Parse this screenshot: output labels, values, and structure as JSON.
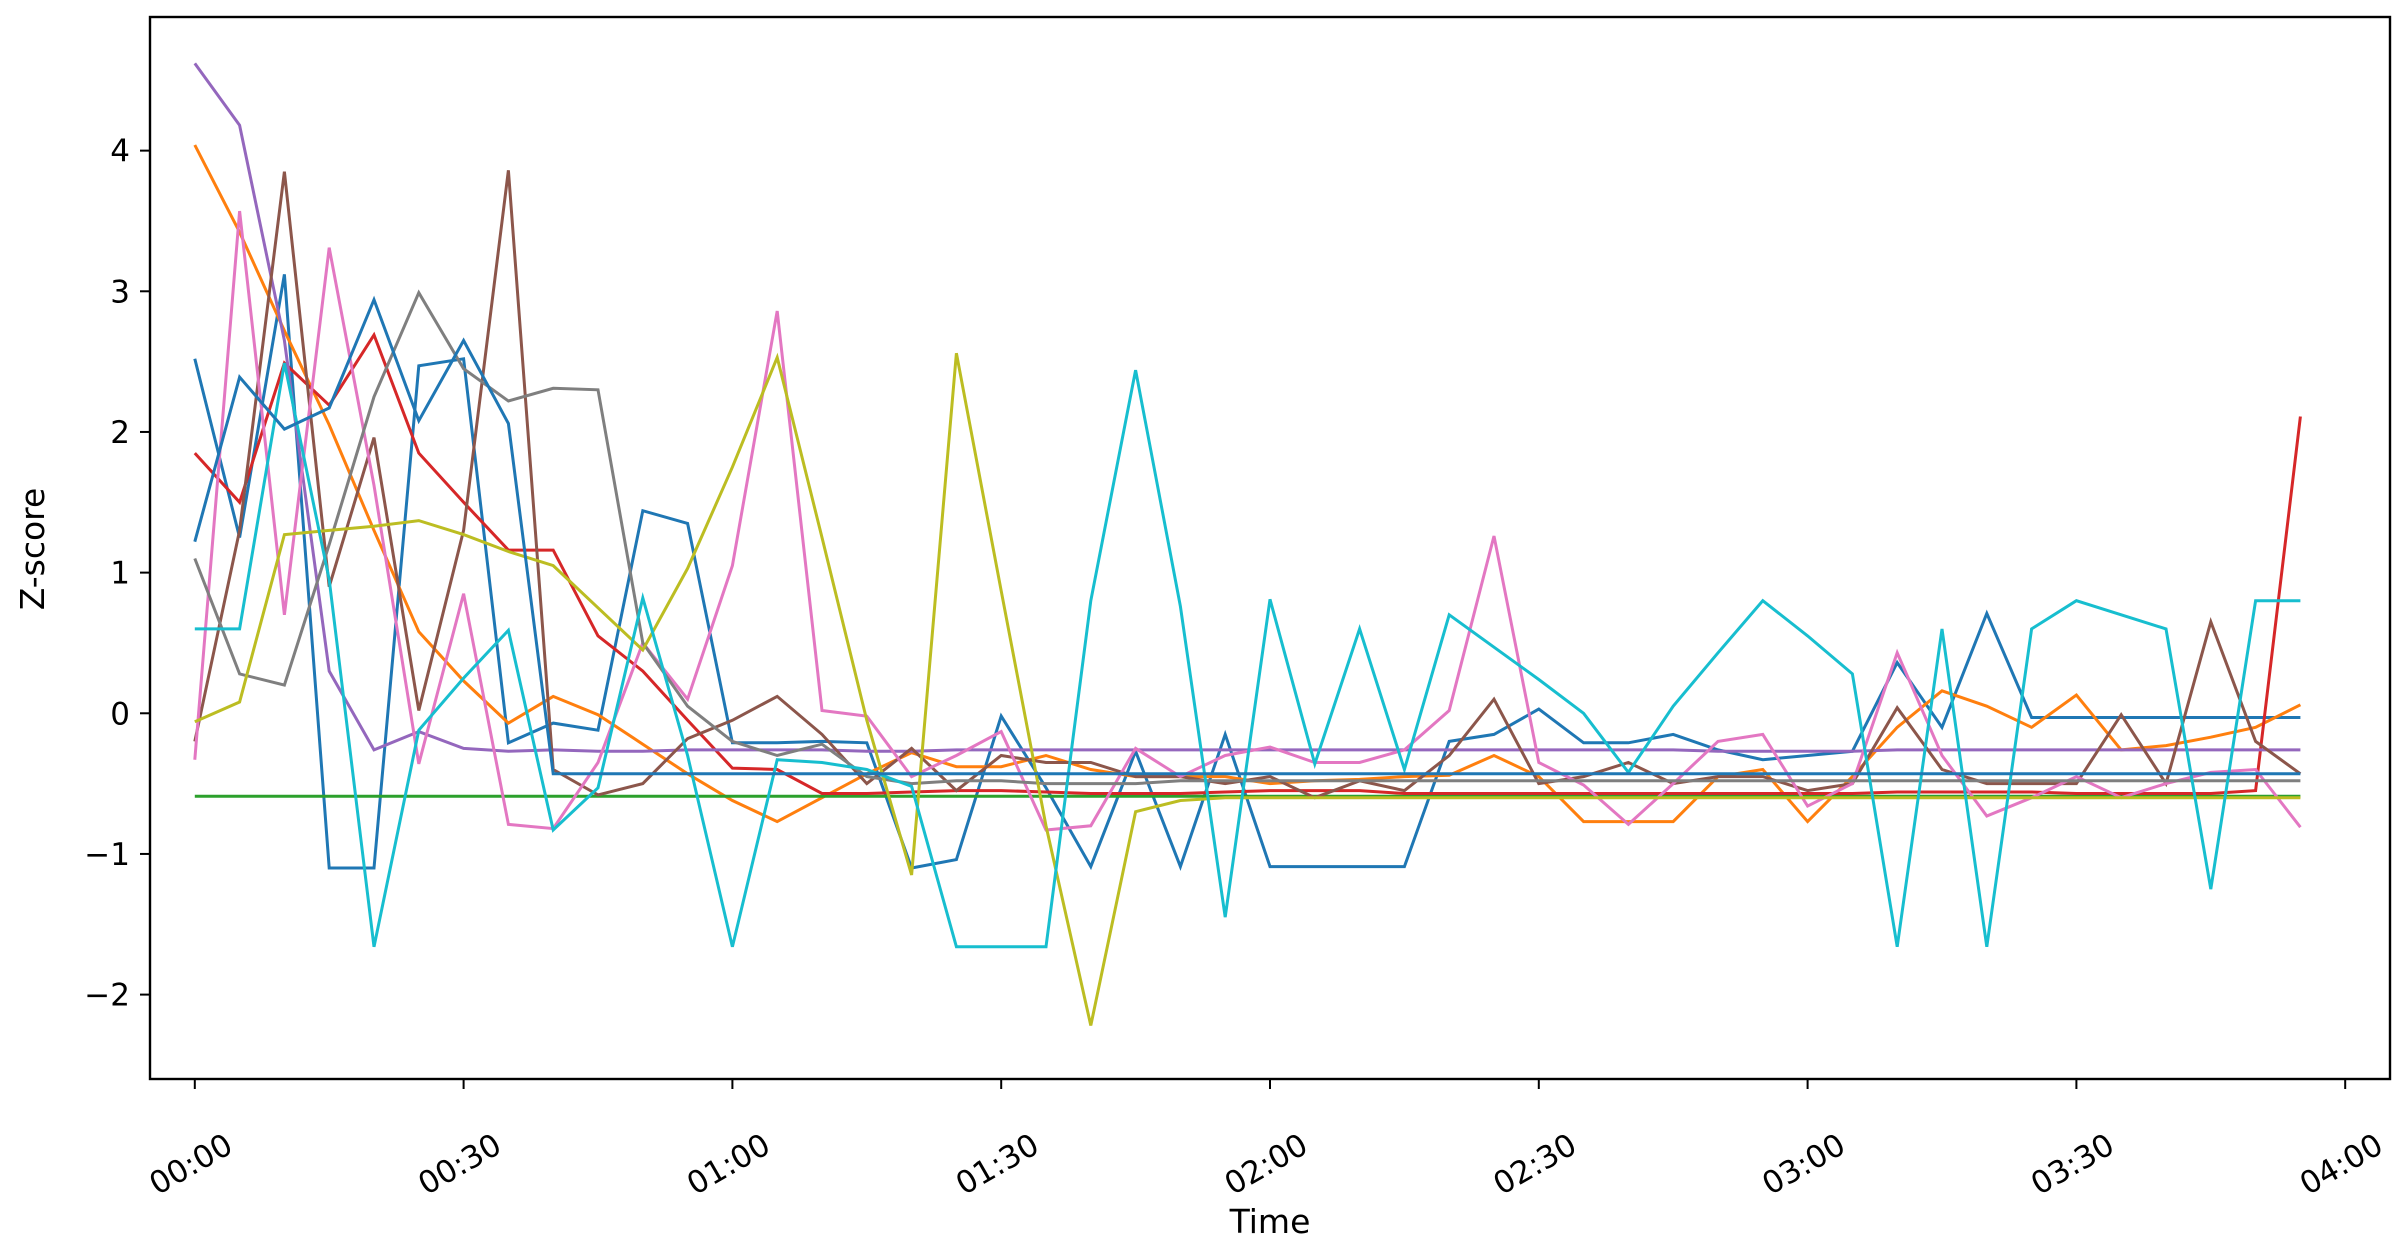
{
  "chart_data": {
    "type": "line",
    "title": "",
    "xlabel": "Time",
    "ylabel": "Z-score",
    "xlim": [
      "-0:05",
      "4:05"
    ],
    "ylim": [
      -2.6,
      4.95
    ],
    "x_ticks": [
      "00:00",
      "00:30",
      "01:00",
      "01:30",
      "02:00",
      "02:30",
      "03:00",
      "03:30",
      "04:00"
    ],
    "y_ticks": [
      -2,
      -1,
      0,
      1,
      2,
      3,
      4
    ],
    "grid": false,
    "legend": "none",
    "x": [
      "00:00",
      "00:05",
      "00:10",
      "00:15",
      "00:20",
      "00:25",
      "00:30",
      "00:35",
      "00:40",
      "00:45",
      "00:50",
      "00:55",
      "01:00",
      "01:05",
      "01:10",
      "01:15",
      "01:20",
      "01:25",
      "01:30",
      "01:35",
      "01:40",
      "01:45",
      "01:50",
      "01:55",
      "02:00",
      "02:05",
      "02:10",
      "02:15",
      "02:20",
      "02:25",
      "02:30",
      "02:35",
      "02:40",
      "02:45",
      "02:50",
      "02:55",
      "03:00",
      "03:05",
      "03:10",
      "03:15",
      "03:20",
      "03:25",
      "03:30",
      "03:35",
      "03:40",
      "03:45",
      "03:50",
      "03:55"
    ],
    "series": [
      {
        "color": "#1f77b4",
        "values": [
          2.52,
          1.25,
          3.12,
          -1.1,
          -1.1,
          2.47,
          2.52,
          -0.21,
          -0.07,
          -0.12,
          1.44,
          1.35,
          -0.21,
          -0.21,
          -0.2,
          -0.21,
          -1.1,
          -1.04,
          -0.02,
          -0.53,
          -1.09,
          -0.27,
          -1.09,
          -0.15,
          -1.09,
          -1.09,
          -1.09,
          -1.09,
          -0.2,
          -0.15,
          0.03,
          -0.21,
          -0.21,
          -0.15,
          -0.26,
          -0.33,
          -0.3,
          -0.27,
          0.36,
          -0.1,
          0.71,
          -0.03,
          -0.03,
          -0.03,
          -0.03,
          -0.03,
          -0.03,
          -0.03
        ]
      },
      {
        "color": "#ff7f0e",
        "values": [
          4.04,
          3.42,
          2.72,
          2.05,
          1.3,
          0.58,
          0.23,
          -0.07,
          0.12,
          -0.01,
          -0.22,
          -0.43,
          -0.62,
          -0.77,
          -0.6,
          -0.43,
          -0.28,
          -0.38,
          -0.38,
          -0.3,
          -0.4,
          -0.45,
          -0.45,
          -0.45,
          -0.5,
          -0.48,
          -0.47,
          -0.45,
          -0.44,
          -0.3,
          -0.45,
          -0.77,
          -0.77,
          -0.77,
          -0.45,
          -0.4,
          -0.77,
          -0.45,
          -0.1,
          0.16,
          0.05,
          -0.1,
          0.13,
          -0.26,
          -0.23,
          -0.17,
          -0.1,
          0.06
        ]
      },
      {
        "color": "#2ca02c",
        "values": [
          -0.59,
          -0.59,
          -0.59,
          -0.59,
          -0.59,
          -0.59,
          -0.59,
          -0.59,
          -0.59,
          -0.59,
          -0.59,
          -0.59,
          -0.59,
          -0.59,
          -0.59,
          -0.59,
          -0.59,
          -0.59,
          -0.59,
          -0.59,
          -0.59,
          -0.59,
          -0.59,
          -0.59,
          -0.59,
          -0.59,
          -0.59,
          -0.59,
          -0.59,
          -0.59,
          -0.59,
          -0.59,
          -0.59,
          -0.59,
          -0.59,
          -0.59,
          -0.59,
          -0.59,
          -0.59,
          -0.59,
          -0.59,
          -0.59,
          -0.59,
          -0.59,
          -0.59,
          -0.59,
          -0.59,
          -0.59
        ]
      },
      {
        "color": "#d62728",
        "values": [
          1.85,
          1.5,
          2.49,
          2.19,
          2.69,
          1.85,
          1.5,
          1.16,
          1.16,
          0.55,
          0.3,
          -0.05,
          -0.39,
          -0.4,
          -0.57,
          -0.57,
          -0.56,
          -0.55,
          -0.55,
          -0.56,
          -0.57,
          -0.57,
          -0.57,
          -0.56,
          -0.55,
          -0.55,
          -0.55,
          -0.57,
          -0.57,
          -0.57,
          -0.57,
          -0.57,
          -0.57,
          -0.57,
          -0.57,
          -0.57,
          -0.57,
          -0.57,
          -0.56,
          -0.56,
          -0.56,
          -0.56,
          -0.57,
          -0.57,
          -0.57,
          -0.57,
          -0.55,
          2.11
        ]
      },
      {
        "color": "#9467bd",
        "values": [
          4.62,
          4.18,
          2.65,
          0.3,
          -0.26,
          -0.13,
          -0.25,
          -0.27,
          -0.26,
          -0.27,
          -0.27,
          -0.26,
          -0.26,
          -0.26,
          -0.26,
          -0.27,
          -0.27,
          -0.26,
          -0.26,
          -0.26,
          -0.26,
          -0.26,
          -0.26,
          -0.26,
          -0.26,
          -0.26,
          -0.26,
          -0.26,
          -0.26,
          -0.26,
          -0.26,
          -0.26,
          -0.26,
          -0.26,
          -0.27,
          -0.27,
          -0.27,
          -0.27,
          -0.26,
          -0.26,
          -0.26,
          -0.26,
          -0.26,
          -0.26,
          -0.26,
          -0.26,
          -0.26,
          -0.26
        ]
      },
      {
        "color": "#8c564b",
        "values": [
          -0.2,
          1.3,
          3.85,
          0.9,
          1.96,
          0.02,
          1.3,
          3.86,
          -0.4,
          -0.58,
          -0.5,
          -0.18,
          -0.05,
          0.12,
          -0.15,
          -0.5,
          -0.25,
          -0.55,
          -0.3,
          -0.35,
          -0.35,
          -0.45,
          -0.45,
          -0.5,
          -0.45,
          -0.6,
          -0.48,
          -0.55,
          -0.3,
          0.1,
          -0.5,
          -0.45,
          -0.35,
          -0.5,
          -0.45,
          -0.45,
          -0.55,
          -0.5,
          0.04,
          -0.4,
          -0.5,
          -0.5,
          -0.5,
          -0.01,
          -0.5,
          0.65,
          -0.2,
          -0.43
        ]
      },
      {
        "color": "#e377c2",
        "values": [
          -0.33,
          3.57,
          0.7,
          3.31,
          1.62,
          -0.36,
          0.85,
          -0.79,
          -0.82,
          -0.35,
          0.5,
          0.1,
          1.05,
          2.86,
          0.02,
          -0.02,
          -0.45,
          -0.3,
          -0.13,
          -0.83,
          -0.8,
          -0.25,
          -0.45,
          -0.3,
          -0.24,
          -0.35,
          -0.35,
          -0.26,
          0.02,
          1.26,
          -0.35,
          -0.51,
          -0.79,
          -0.5,
          -0.2,
          -0.15,
          -0.66,
          -0.5,
          0.43,
          -0.3,
          -0.73,
          -0.6,
          -0.45,
          -0.6,
          -0.5,
          -0.42,
          -0.4,
          -0.81
        ]
      },
      {
        "color": "#7f7f7f",
        "values": [
          1.1,
          0.28,
          0.2,
          1.2,
          2.25,
          2.99,
          2.45,
          2.22,
          2.31,
          2.3,
          0.5,
          0.05,
          -0.2,
          -0.3,
          -0.22,
          -0.45,
          -0.5,
          -0.48,
          -0.48,
          -0.5,
          -0.5,
          -0.5,
          -0.48,
          -0.48,
          -0.48,
          -0.48,
          -0.48,
          -0.48,
          -0.48,
          -0.48,
          -0.48,
          -0.48,
          -0.48,
          -0.48,
          -0.48,
          -0.48,
          -0.48,
          -0.48,
          -0.48,
          -0.48,
          -0.48,
          -0.48,
          -0.48,
          -0.48,
          -0.48,
          -0.48,
          -0.48,
          -0.48
        ]
      },
      {
        "color": "#bcbd22",
        "values": [
          -0.06,
          0.08,
          1.27,
          1.3,
          1.33,
          1.37,
          1.27,
          1.15,
          1.05,
          0.75,
          0.45,
          1.03,
          1.75,
          2.53,
          1.25,
          -0.05,
          -1.15,
          2.56,
          0.87,
          -0.8,
          -2.22,
          -0.7,
          -0.62,
          -0.6,
          -0.6,
          -0.6,
          -0.6,
          -0.6,
          -0.6,
          -0.6,
          -0.6,
          -0.6,
          -0.6,
          -0.6,
          -0.6,
          -0.6,
          -0.6,
          -0.6,
          -0.6,
          -0.6,
          -0.6,
          -0.6,
          -0.6,
          -0.6,
          -0.6,
          -0.6,
          -0.6,
          -0.6
        ]
      },
      {
        "color": "#17becf",
        "values": [
          0.6,
          0.6,
          2.49,
          0.95,
          -1.66,
          -0.12,
          0.25,
          0.59,
          -0.83,
          -0.53,
          0.82,
          -0.3,
          -1.66,
          -0.33,
          -0.35,
          -0.4,
          -0.52,
          -1.66,
          -1.66,
          -1.66,
          0.8,
          2.44,
          0.76,
          -1.45,
          0.81,
          -0.36,
          0.6,
          -0.4,
          0.7,
          0.47,
          0.24,
          0.0,
          -0.42,
          0.05,
          0.43,
          0.8,
          0.55,
          0.28,
          -1.66,
          0.6,
          -1.66,
          0.6,
          0.8,
          0.7,
          0.6,
          -1.25,
          0.8,
          0.8
        ]
      },
      {
        "color": "#1f77b4",
        "values": [
          1.22,
          2.39,
          2.02,
          2.17,
          2.94,
          2.08,
          2.65,
          2.06,
          -0.43,
          -0.43,
          -0.43,
          -0.43,
          -0.43,
          -0.43,
          -0.43,
          -0.43,
          -0.43,
          -0.43,
          -0.43,
          -0.43,
          -0.43,
          -0.43,
          -0.43,
          -0.43,
          -0.43,
          -0.43,
          -0.43,
          -0.43,
          -0.43,
          -0.43,
          -0.43,
          -0.43,
          -0.43,
          -0.43,
          -0.43,
          -0.43,
          -0.43,
          -0.43,
          -0.43,
          -0.43,
          -0.43,
          -0.43,
          -0.43,
          -0.43,
          -0.43,
          -0.43,
          -0.43,
          -0.43
        ]
      }
    ]
  }
}
